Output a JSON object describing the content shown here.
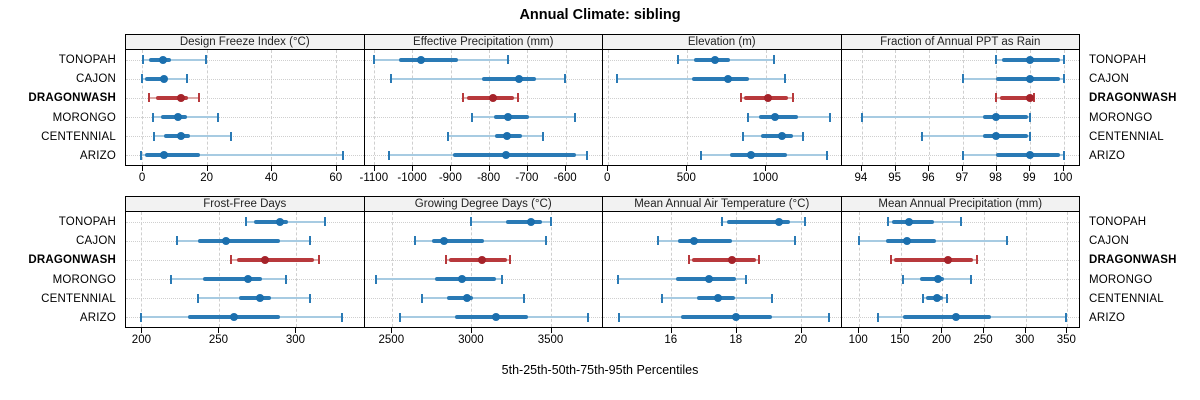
{
  "title": "Annual Climate: sibling",
  "caption": "5th-25th-50th-75th-95th Percentiles",
  "colors": {
    "blue_main": "#2a7ab5",
    "blue_light": "#a7cbe2",
    "blue_dot": "#1b6fae",
    "red_main": "#b8393c",
    "red_light": "#dcaaa8",
    "red_dot": "#a5232a",
    "grid": "#cfcfcf",
    "header_bg": "#f2f2f2",
    "frame": "#000000"
  },
  "chart_data": {
    "type": "interval-dotplot",
    "layout": "2 rows x 4 columns of panels, shared site rows",
    "percentile_levels": [
      5,
      25,
      50,
      75,
      95
    ],
    "sites": [
      "TONOPAH",
      "CAJON",
      "DRAGONWASH",
      "MORONGO",
      "CENTENNIAL",
      "ARIZO"
    ],
    "highlight_site": "DRAGONWASH",
    "legend": "thin light segment = 5th-25th and 75th-95th, thick segment = 25th-75th, dot = median, end caps at 5th and 95th",
    "panels": [
      {
        "title": "Design Freeze Index (°C)",
        "xlim": [
          -5,
          68.5
        ],
        "ticks": [
          0,
          20,
          40,
          60
        ],
        "values": [
          [
            0.3,
            2.0,
            6.5,
            8.8,
            19.8
          ],
          [
            0.0,
            1.0,
            6.8,
            7.6,
            13.8
          ],
          [
            2.2,
            4.4,
            11.9,
            14.3,
            17.6
          ],
          [
            3.3,
            5.8,
            11.0,
            13.8,
            23.4
          ],
          [
            3.7,
            6.8,
            12.0,
            14.8,
            27.4
          ],
          [
            -0.3,
            1.0,
            6.8,
            18.0,
            62.3
          ]
        ]
      },
      {
        "title": "Effective Precipitation (mm)",
        "xlim": [
          -1125,
          -505
        ],
        "ticks": [
          -1100,
          -1000,
          -900,
          -800,
          -700,
          -600
        ],
        "values": [
          [
            -1100,
            -1035,
            -978,
            -880,
            -750
          ],
          [
            -1055,
            -817,
            -722,
            -678,
            -601
          ],
          [
            -868,
            -858,
            -790,
            -735,
            -725
          ],
          [
            -845,
            -787,
            -750,
            -695,
            -575
          ],
          [
            -908,
            -785,
            -753,
            -713,
            -658
          ],
          [
            -1060,
            -893,
            -755,
            -572,
            -545
          ]
        ]
      },
      {
        "title": "Elevation (m)",
        "xlim": [
          -30,
          1470
        ],
        "ticks": [
          0,
          500,
          1000
        ],
        "values": [
          [
            443,
            545,
            680,
            770,
            1050
          ],
          [
            60,
            530,
            760,
            890,
            1118
          ],
          [
            840,
            860,
            1010,
            1138,
            1168
          ],
          [
            885,
            953,
            1055,
            1200,
            1405
          ],
          [
            855,
            965,
            1102,
            1167,
            1230
          ],
          [
            590,
            770,
            905,
            1135,
            1385
          ]
        ]
      },
      {
        "title": "Fraction of Annual PPT as Rain",
        "xlim": [
          93.4,
          100.45
        ],
        "ticks": [
          94,
          95,
          96,
          97,
          98,
          99,
          100
        ],
        "values": [
          [
            98,
            98.15,
            99,
            99.9,
            100
          ],
          [
            97,
            98,
            99,
            99.9,
            100
          ],
          [
            98,
            98.1,
            99,
            99.05,
            99.1
          ],
          [
            94,
            97.6,
            98,
            98.95,
            99
          ],
          [
            95.8,
            97.6,
            98,
            98.95,
            99
          ],
          [
            97,
            98,
            99,
            99.9,
            100
          ]
        ]
      },
      {
        "title": "Frost-Free Days",
        "xlim": [
          190,
          344
        ],
        "ticks": [
          200,
          250,
          300
        ],
        "values": [
          [
            268,
            273,
            290,
            295,
            319
          ],
          [
            223,
            237,
            255,
            290,
            309
          ],
          [
            258,
            262,
            280,
            312,
            315
          ],
          [
            219,
            240,
            269,
            278,
            294
          ],
          [
            237,
            263,
            277,
            284,
            309
          ],
          [
            200,
            230,
            260,
            290,
            330
          ]
        ]
      },
      {
        "title": "Growing Degree Days (°C)",
        "xlim": [
          2330,
          3820
        ],
        "ticks": [
          2500,
          3000,
          3500
        ],
        "values": [
          [
            3000,
            3220,
            3375,
            3445,
            3500
          ],
          [
            2645,
            2755,
            2830,
            3080,
            3470
          ],
          [
            2840,
            2860,
            3065,
            3225,
            3245
          ],
          [
            2400,
            2775,
            2940,
            3155,
            3190
          ],
          [
            2690,
            2850,
            2970,
            3010,
            3330
          ],
          [
            2550,
            2900,
            3155,
            3355,
            3730
          ]
        ]
      },
      {
        "title": "Mean Annual Air Temperature (°C)",
        "xlim": [
          13.9,
          21.2
        ],
        "ticks": [
          16,
          18,
          20
        ],
        "values": [
          [
            17.55,
            17.7,
            19.3,
            19.65,
            20.1
          ],
          [
            15.6,
            16.2,
            16.7,
            17.85,
            19.8
          ],
          [
            16.55,
            16.65,
            17.85,
            18.6,
            18.7
          ],
          [
            14.35,
            16.15,
            17.15,
            18.0,
            18.3
          ],
          [
            15.7,
            16.8,
            17.45,
            17.95,
            19.1
          ],
          [
            14.4,
            16.3,
            18.0,
            19.1,
            20.85
          ]
        ]
      },
      {
        "title": "Mean Annual Precipitation (mm)",
        "xlim": [
          79,
          364
        ],
        "ticks": [
          100,
          150,
          200,
          250,
          300,
          350
        ],
        "values": [
          [
            135,
            140,
            160,
            190,
            222
          ],
          [
            100,
            132,
            157,
            193,
            278
          ],
          [
            138,
            142,
            207,
            237,
            241
          ],
          [
            153,
            173,
            195,
            202,
            234
          ],
          [
            177,
            180,
            194,
            201,
            205
          ],
          [
            123,
            153,
            216,
            259,
            349
          ]
        ]
      }
    ]
  }
}
